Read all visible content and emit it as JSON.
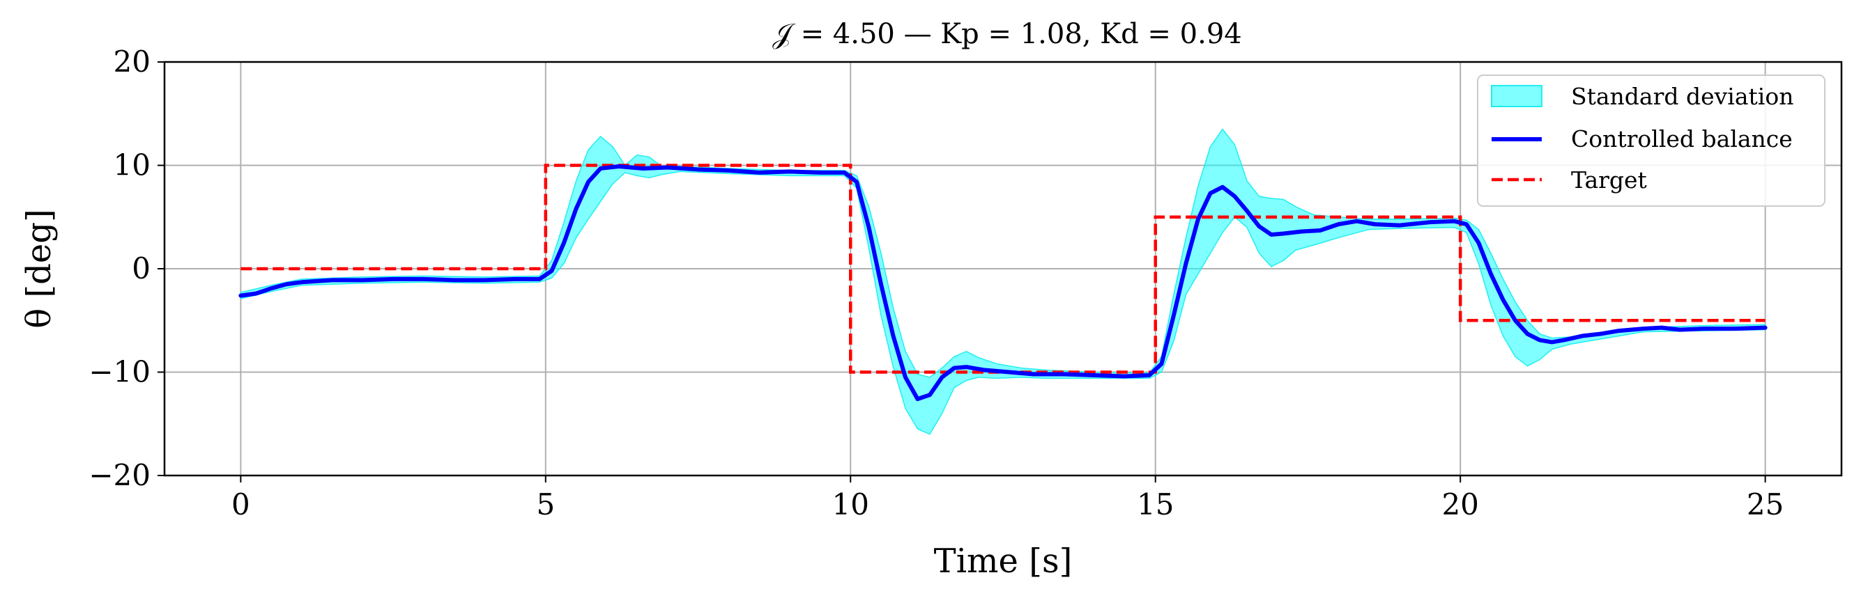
{
  "chart_data": {
    "type": "line",
    "title": "𝒥 = 4.50 — Kp = 1.08, Kd = 0.94",
    "xlabel": "Time [s]",
    "ylabel": "θ [deg]",
    "xlim": [
      -1.25,
      26.25
    ],
    "ylim": [
      -20,
      20
    ],
    "xticks": [
      0,
      5,
      10,
      15,
      20,
      25
    ],
    "yticks": [
      -20,
      -10,
      0,
      10,
      20
    ],
    "xtick_labels": [
      "0",
      "5",
      "10",
      "15",
      "20",
      "25"
    ],
    "ytick_labels": [
      "−20",
      "−10",
      "0",
      "10",
      "20"
    ],
    "grid": true,
    "legend_position": "top-right",
    "legend": [
      "Standard deviation",
      "Controlled balance",
      "Target"
    ],
    "colors": {
      "band": "#00ffff",
      "band_edge": "#22eeee",
      "line": "#0000ff",
      "target": "#ff0000",
      "grid": "#b0b0b0"
    },
    "series": [
      {
        "name": "Controlled balance",
        "style": "solid",
        "x": [
          0,
          0.25,
          0.5,
          0.75,
          1,
          1.5,
          2,
          2.5,
          3,
          3.5,
          4,
          4.5,
          4.9,
          5.1,
          5.3,
          5.5,
          5.7,
          5.9,
          6.2,
          6.6,
          7,
          7.5,
          8,
          8.5,
          9,
          9.5,
          9.9,
          10.1,
          10.3,
          10.5,
          10.7,
          10.9,
          11.1,
          11.3,
          11.5,
          11.7,
          11.9,
          12.2,
          12.6,
          13,
          13.5,
          14,
          14.5,
          14.9,
          15.1,
          15.3,
          15.5,
          15.7,
          15.9,
          16.1,
          16.3,
          16.5,
          16.7,
          16.9,
          17.1,
          17.4,
          17.7,
          18,
          18.3,
          18.6,
          19,
          19.5,
          19.9,
          20.1,
          20.3,
          20.5,
          20.7,
          20.9,
          21.1,
          21.3,
          21.5,
          21.7,
          22,
          22.3,
          22.6,
          23,
          23.3,
          23.6,
          24,
          24.5,
          25
        ],
        "y": [
          -2.6,
          -2.4,
          -1.9,
          -1.5,
          -1.3,
          -1.1,
          -1.1,
          -1.0,
          -1.0,
          -1.1,
          -1.1,
          -1.0,
          -1.0,
          -0.2,
          2.5,
          5.8,
          8.4,
          9.7,
          9.9,
          9.7,
          9.8,
          9.6,
          9.5,
          9.3,
          9.4,
          9.3,
          9.3,
          8.4,
          4.0,
          -1.5,
          -6.5,
          -10.5,
          -12.6,
          -12.2,
          -10.5,
          -9.6,
          -9.5,
          -9.8,
          -10.0,
          -10.2,
          -10.2,
          -10.3,
          -10.4,
          -10.3,
          -9.2,
          -4.5,
          0.5,
          4.8,
          7.3,
          7.9,
          7.0,
          5.6,
          4.1,
          3.3,
          3.4,
          3.6,
          3.7,
          4.3,
          4.6,
          4.3,
          4.2,
          4.5,
          4.6,
          4.3,
          2.5,
          -0.5,
          -3.0,
          -5.0,
          -6.3,
          -6.9,
          -7.1,
          -6.9,
          -6.5,
          -6.3,
          -6.0,
          -5.8,
          -5.7,
          -5.9,
          -5.8,
          -5.8,
          -5.7
        ]
      },
      {
        "name": "Target",
        "style": "dashed",
        "x": [
          0,
          5,
          5,
          10,
          10,
          15,
          15,
          20,
          20,
          25
        ],
        "y": [
          0,
          0,
          10,
          10,
          -10,
          -10,
          5,
          5,
          -5,
          -5
        ]
      }
    ],
    "band": {
      "name": "Standard deviation",
      "x": [
        0,
        0.5,
        1,
        2,
        3,
        4,
        4.9,
        5.1,
        5.3,
        5.5,
        5.7,
        5.9,
        6.1,
        6.3,
        6.5,
        6.7,
        6.9,
        7.2,
        7.6,
        8,
        9,
        9.9,
        10.1,
        10.3,
        10.5,
        10.7,
        10.9,
        11.1,
        11.3,
        11.5,
        11.7,
        11.9,
        12.1,
        12.4,
        12.8,
        13.2,
        14,
        14.9,
        15.1,
        15.3,
        15.5,
        15.7,
        15.9,
        16.1,
        16.3,
        16.5,
        16.7,
        16.9,
        17.1,
        17.3,
        17.6,
        18,
        18.5,
        19,
        19.9,
        20.1,
        20.3,
        20.5,
        20.7,
        20.9,
        21.1,
        21.3,
        21.5,
        21.8,
        22.2,
        23,
        24,
        25
      ],
      "upper": [
        -2.3,
        -1.6,
        -1.0,
        -0.8,
        -0.7,
        -0.8,
        -0.7,
        0.8,
        4.5,
        8.5,
        11.5,
        12.8,
        11.8,
        10.0,
        11.0,
        10.8,
        9.9,
        9.9,
        9.8,
        9.7,
        9.5,
        9.5,
        9.0,
        6.0,
        1.5,
        -3.8,
        -8.0,
        -10.2,
        -10.5,
        -9.6,
        -8.5,
        -8.0,
        -8.6,
        -9.2,
        -9.6,
        -9.8,
        -10.0,
        -10.1,
        -8.5,
        -2.5,
        3.0,
        8.0,
        11.8,
        13.5,
        12.0,
        8.5,
        7.0,
        6.8,
        6.7,
        6.0,
        5.2,
        5.0,
        4.8,
        4.8,
        4.9,
        4.7,
        3.8,
        1.5,
        -1.0,
        -3.2,
        -5.0,
        -6.3,
        -6.7,
        -6.6,
        -6.2,
        -5.7,
        -5.5,
        -5.4
      ],
      "lower": [
        -2.9,
        -2.2,
        -1.6,
        -1.4,
        -1.3,
        -1.4,
        -1.3,
        -0.9,
        0.5,
        3.0,
        4.8,
        6.5,
        8.2,
        9.3,
        9.0,
        8.8,
        9.1,
        9.4,
        9.3,
        9.2,
        9.0,
        9.0,
        7.8,
        2.0,
        -4.5,
        -9.5,
        -13.5,
        -15.5,
        -16.0,
        -14.0,
        -11.5,
        -10.8,
        -10.5,
        -10.6,
        -10.5,
        -10.6,
        -10.6,
        -10.6,
        -10.0,
        -7.0,
        -2.5,
        -0.5,
        1.5,
        3.5,
        5.0,
        4.0,
        1.5,
        0.2,
        0.8,
        1.8,
        2.3,
        3.0,
        3.8,
        3.9,
        4.0,
        3.5,
        0.5,
        -3.5,
        -6.5,
        -8.5,
        -9.4,
        -8.8,
        -7.8,
        -7.3,
        -6.9,
        -6.1,
        -6.0,
        -5.9
      ]
    }
  }
}
